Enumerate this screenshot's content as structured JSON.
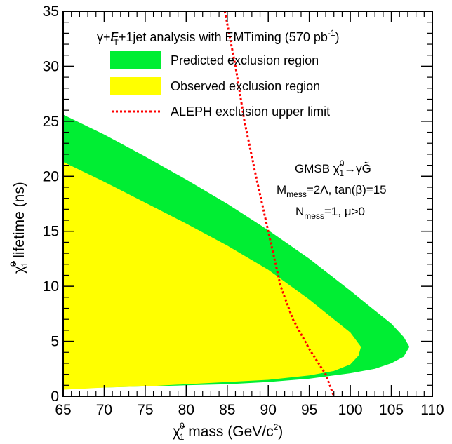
{
  "chart_data": {
    "type": "area",
    "xlabel": {
      "symbol": "χ̃",
      "sup": "0",
      "sub": "1",
      "text": " mass (GeV/c",
      "text_sup": "2",
      "text_end": ")"
    },
    "ylabel": {
      "symbol": "χ̃",
      "sup": "0",
      "sub": "1",
      "text": " lifetime (ns)"
    },
    "xlim": [
      65,
      110
    ],
    "ylim": [
      0,
      35
    ],
    "x_ticks": [
      "65",
      "70",
      "75",
      "80",
      "85",
      "90",
      "95",
      "100",
      "105",
      "110"
    ],
    "y_ticks": [
      "0",
      "5",
      "10",
      "15",
      "20",
      "25",
      "30",
      "35"
    ],
    "grid": false,
    "legend": {
      "placement": "top-right",
      "title": {
        "main": "γ+E",
        "slash": "/",
        "sub": "T",
        "rest": "+1jet analysis with EMTiming (570 pb",
        "sup": "-1",
        "end": ")"
      },
      "entries": [
        {
          "label": "Predicted exclusion region",
          "color": "#00ee33",
          "style": "fill"
        },
        {
          "label": "Observed exclusion region",
          "color": "#ffff00",
          "style": "fill"
        },
        {
          "label": "ALEPH exclusion upper limit",
          "color": "#ff0000",
          "style": "dotted-line"
        }
      ]
    },
    "annotation": {
      "line1": {
        "pre": "GMSB ",
        "sym": "χ̃",
        "sup": "0",
        "sub": "1",
        "post": "→γG̃"
      },
      "line2": {
        "pre": "M",
        "sub": "mess",
        "post": "=2Λ, tan(β)=15"
      },
      "line3": {
        "pre": "N",
        "sub": "mess",
        "post": "=1, μ>0"
      }
    },
    "series": [
      {
        "name": "Predicted exclusion region",
        "color": "#00ee33",
        "upper": [
          [
            65,
            25.6
          ],
          [
            70,
            23.8
          ],
          [
            75,
            21.8
          ],
          [
            80,
            19.7
          ],
          [
            85,
            17.5
          ],
          [
            90,
            15.1
          ],
          [
            95,
            12.5
          ],
          [
            100,
            9.6
          ],
          [
            103,
            7.8
          ],
          [
            105,
            6.6
          ],
          [
            106.5,
            5.4
          ],
          [
            107.2,
            4.5
          ]
        ],
        "lower": [
          [
            65,
            0.7
          ],
          [
            70,
            0.8
          ],
          [
            75,
            0.9
          ],
          [
            80,
            1.0
          ],
          [
            85,
            1.1
          ],
          [
            90,
            1.3
          ],
          [
            95,
            1.6
          ],
          [
            100,
            2.1
          ],
          [
            103,
            2.5
          ],
          [
            105,
            3.0
          ],
          [
            106.5,
            3.6
          ],
          [
            107.2,
            4.5
          ]
        ]
      },
      {
        "name": "Observed exclusion region",
        "color": "#ffff00",
        "upper": [
          [
            65,
            21.3
          ],
          [
            70,
            19.5
          ],
          [
            75,
            17.6
          ],
          [
            80,
            15.7
          ],
          [
            85,
            13.7
          ],
          [
            90,
            11.5
          ],
          [
            95,
            8.8
          ],
          [
            98,
            7.0
          ],
          [
            100,
            5.8
          ],
          [
            101,
            4.8
          ],
          [
            101.3,
            4.5
          ]
        ],
        "lower": [
          [
            65,
            0.6
          ],
          [
            70,
            0.8
          ],
          [
            75,
            0.9
          ],
          [
            80,
            1.1
          ],
          [
            85,
            1.3
          ],
          [
            90,
            1.5
          ],
          [
            95,
            1.9
          ],
          [
            98,
            2.3
          ],
          [
            100,
            2.9
          ],
          [
            101,
            3.7
          ],
          [
            101.3,
            4.5
          ]
        ]
      },
      {
        "name": "ALEPH exclusion upper limit",
        "color": "#ff0000",
        "points": [
          [
            84.7,
            35
          ],
          [
            86,
            30
          ],
          [
            87.1,
            25
          ],
          [
            88.5,
            20
          ],
          [
            90,
            15
          ],
          [
            91.5,
            10
          ],
          [
            93,
            7
          ],
          [
            95,
            4.3
          ],
          [
            97,
            2
          ],
          [
            98,
            0
          ]
        ]
      }
    ]
  }
}
